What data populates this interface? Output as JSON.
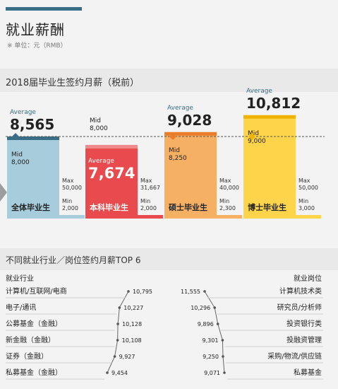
{
  "header": {
    "title": "就业薪酬",
    "unit": "※ 单位：元（RMB）"
  },
  "colors": {
    "all": "#a7ccdb",
    "bachelor": "#e84a4d",
    "master": "#f6b063",
    "doctor": "#fdd44a",
    "ribbon": "#3a6d86",
    "line": "#666666"
  },
  "chart_data": [
    {
      "type": "bar",
      "title": "2018届毕业生签约月薪（税前）",
      "categories": [
        "全体毕业生",
        "本科毕业生",
        "硕士毕业生",
        "博士毕业生"
      ],
      "series": [
        {
          "name": "Average",
          "values": [
            8565,
            7674,
            9028,
            10812
          ]
        },
        {
          "name": "Mid",
          "values": [
            8000,
            8000,
            8250,
            9000
          ]
        },
        {
          "name": "Max",
          "values": [
            50000,
            31667,
            40000,
            50000
          ]
        },
        {
          "name": "Min",
          "values": [
            2000,
            2000,
            2300,
            3000
          ]
        }
      ],
      "labels": {
        "average": "Average",
        "mid": "Mid",
        "max": "Max",
        "min": "Min",
        "average_values": [
          "8,565",
          "7,674",
          "9,028",
          "10,812"
        ],
        "mid_values": [
          "8,000",
          "8,000",
          "8,250",
          "9,000"
        ],
        "max_values": [
          "50,000",
          "31,667",
          "40,000",
          "50,000"
        ],
        "min_values": [
          "2,000",
          "2,000",
          "2,300",
          "3,000"
        ]
      }
    },
    {
      "type": "table",
      "title": "不同就业行业／岗位签约月薪TOP 6",
      "industry": {
        "header": "就业行业",
        "categories": [
          "计算机/互联网/电商",
          "电子/通讯",
          "公募基金（金融）",
          "新金融（金融）",
          "证券（金融）",
          "私募基金（金融）"
        ],
        "values": [
          10795,
          10227,
          10128,
          10108,
          9927,
          9454
        ],
        "value_labels": [
          "10,795",
          "10,227",
          "10,128",
          "10,108",
          "9,927",
          "9,454"
        ]
      },
      "position": {
        "header": "就业岗位",
        "categories": [
          "计算机技术类",
          "研究员/分析师",
          "投资银行类",
          "投融资管理",
          "采购/物流/供应链",
          "私募基金"
        ],
        "values": [
          11555,
          10296,
          9896,
          9301,
          9250,
          9071
        ],
        "value_labels": [
          "11,555",
          "10,296",
          "9,896",
          "9,301",
          "9,250",
          "9,071"
        ]
      }
    }
  ]
}
